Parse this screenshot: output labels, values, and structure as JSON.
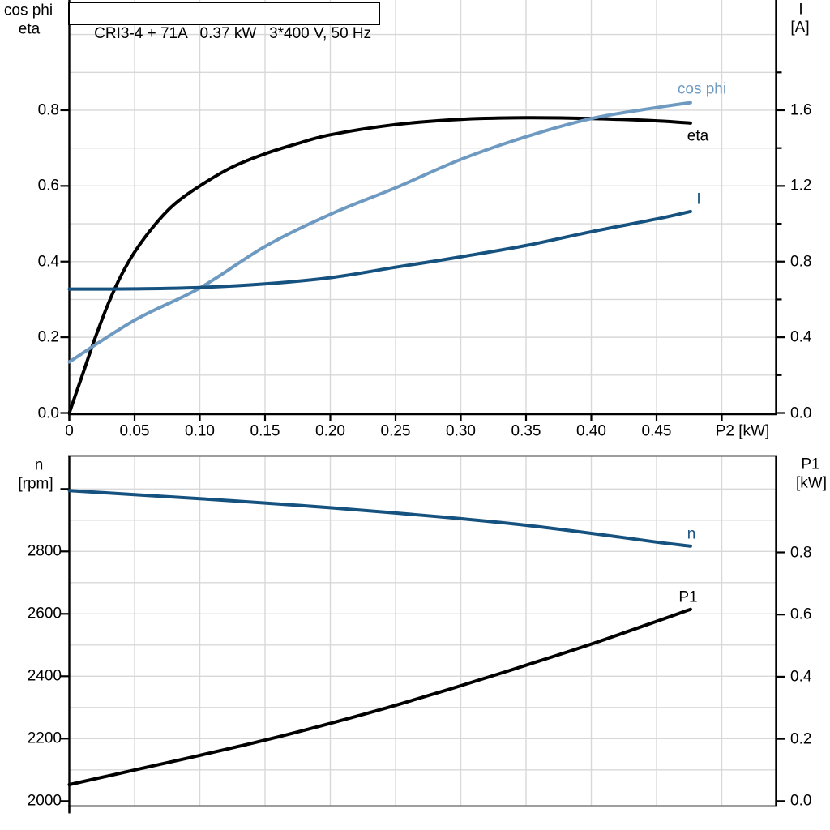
{
  "page": {
    "background": "#ffffff"
  },
  "colors": {
    "black": "#000000",
    "light_blue": "#6e9ac1",
    "dark_blue": "#16527f",
    "grid": "#d8d8d8",
    "frame_gray": "#7f7f7f",
    "text": "#000000"
  },
  "chart_data": [
    {
      "id": "top",
      "type": "line",
      "title": "CRI3-4 + 71A   0.37 kW   3*400 V, 50 Hz",
      "xlabel": "P2 [kW]",
      "x_range": [
        0,
        0.542
      ],
      "x_tick_labels": [
        "0",
        "0.05",
        "0.10",
        "0.15",
        "0.20",
        "0.25",
        "0.30",
        "0.35",
        "0.40",
        "0.45"
      ],
      "x_tick_values": [
        0,
        0.05,
        0.1,
        0.15,
        0.2,
        0.25,
        0.3,
        0.35,
        0.4,
        0.45,
        0.5
      ],
      "grid": "on",
      "legend_position": "inline-labels",
      "axes": {
        "left": {
          "caption_lines": [
            "cos phi",
            "eta"
          ],
          "tick_labels": [
            "0.0",
            "0.2",
            "0.4",
            "0.6",
            "0.8"
          ],
          "tick_values": [
            0,
            0.2,
            0.4,
            0.6,
            0.8
          ],
          "range": [
            0,
            1.09
          ]
        },
        "right": {
          "caption_lines": [
            "I",
            "[A]"
          ],
          "tick_labels": [
            "0.0",
            "0.4",
            "0.8",
            "1.2",
            "1.6"
          ],
          "tick_values": [
            0,
            0.4,
            0.8,
            1.2,
            1.6
          ],
          "minor_tick_values": [
            0.2,
            0.6,
            1.0,
            1.4,
            1.8
          ],
          "range": [
            0,
            2.19
          ]
        }
      },
      "series": [
        {
          "name": "eta",
          "label": "eta",
          "axis": "left",
          "color_key": "black",
          "points": [
            [
              0,
              0
            ],
            [
              0.004,
              0.04
            ],
            [
              0.01,
              0.1
            ],
            [
              0.02,
              0.2
            ],
            [
              0.03,
              0.29
            ],
            [
              0.04,
              0.365
            ],
            [
              0.05,
              0.425
            ],
            [
              0.065,
              0.495
            ],
            [
              0.08,
              0.55
            ],
            [
              0.1,
              0.6
            ],
            [
              0.125,
              0.65
            ],
            [
              0.15,
              0.685
            ],
            [
              0.175,
              0.712
            ],
            [
              0.2,
              0.735
            ],
            [
              0.25,
              0.762
            ],
            [
              0.3,
              0.776
            ],
            [
              0.35,
              0.78
            ],
            [
              0.4,
              0.778
            ],
            [
              0.45,
              0.772
            ],
            [
              0.476,
              0.766
            ]
          ]
        },
        {
          "name": "cos phi",
          "label": "cos phi",
          "axis": "left",
          "color_key": "light_blue",
          "points": [
            [
              0,
              0.135
            ],
            [
              0.05,
              0.245
            ],
            [
              0.1,
              0.33
            ],
            [
              0.15,
              0.44
            ],
            [
              0.2,
              0.525
            ],
            [
              0.25,
              0.595
            ],
            [
              0.3,
              0.67
            ],
            [
              0.35,
              0.73
            ],
            [
              0.4,
              0.778
            ],
            [
              0.45,
              0.807
            ],
            [
              0.476,
              0.82
            ]
          ]
        },
        {
          "name": "I",
          "label": "I",
          "axis": "right",
          "color_key": "dark_blue",
          "points": [
            [
              0,
              0.655
            ],
            [
              0.05,
              0.656
            ],
            [
              0.1,
              0.663
            ],
            [
              0.15,
              0.682
            ],
            [
              0.2,
              0.715
            ],
            [
              0.25,
              0.77
            ],
            [
              0.3,
              0.825
            ],
            [
              0.35,
              0.885
            ],
            [
              0.4,
              0.958
            ],
            [
              0.45,
              1.025
            ],
            [
              0.476,
              1.065
            ]
          ]
        }
      ]
    },
    {
      "id": "bottom",
      "type": "line",
      "title": "",
      "xlabel": "",
      "x_range": [
        0,
        0.542
      ],
      "x_tick_labels": [],
      "x_tick_values": [
        0
      ],
      "grid": "on",
      "legend_position": "inline-labels",
      "axes": {
        "left": {
          "caption_lines": [
            "n",
            "[rpm]"
          ],
          "tick_labels": [
            "2000",
            "2200",
            "2400",
            "2600",
            "2800"
          ],
          "tick_values": [
            2000,
            2200,
            2400,
            2600,
            2800
          ],
          "minor_tick_values": [
            3000
          ],
          "range": [
            2000,
            3100
          ]
        },
        "right": {
          "caption_lines": [
            "P1",
            "[kW]"
          ],
          "tick_labels": [
            "0.0",
            "0.2",
            "0.4",
            "0.6",
            "0.8"
          ],
          "tick_values": [
            0,
            0.2,
            0.4,
            0.6,
            0.8
          ],
          "range": [
            0,
            1.11
          ]
        }
      },
      "series": [
        {
          "name": "n",
          "label": "n",
          "axis": "left",
          "color_key": "dark_blue",
          "points": [
            [
              0,
              2995
            ],
            [
              0.05,
              2982
            ],
            [
              0.1,
              2969
            ],
            [
              0.15,
              2955
            ],
            [
              0.2,
              2940
            ],
            [
              0.25,
              2923
            ],
            [
              0.3,
              2905
            ],
            [
              0.35,
              2884
            ],
            [
              0.4,
              2858
            ],
            [
              0.45,
              2830
            ],
            [
              0.476,
              2817
            ]
          ]
        },
        {
          "name": "P1",
          "label": "P1",
          "axis": "right",
          "color_key": "black",
          "points": [
            [
              0,
              0.053
            ],
            [
              0.05,
              0.1
            ],
            [
              0.1,
              0.147
            ],
            [
              0.15,
              0.196
            ],
            [
              0.2,
              0.25
            ],
            [
              0.25,
              0.308
            ],
            [
              0.3,
              0.371
            ],
            [
              0.35,
              0.437
            ],
            [
              0.4,
              0.505
            ],
            [
              0.45,
              0.578
            ],
            [
              0.476,
              0.617
            ]
          ]
        }
      ]
    }
  ]
}
